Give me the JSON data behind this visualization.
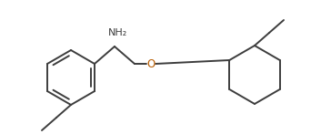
{
  "bg_color": "#ffffff",
  "line_color": "#3d3d3d",
  "o_color": "#b85c00",
  "n_color": "#3d3d3d",
  "line_width": 1.4,
  "fig_width": 3.53,
  "fig_height": 1.47,
  "dpi": 100,
  "nh2_text": "NH₂",
  "o_text": "O"
}
